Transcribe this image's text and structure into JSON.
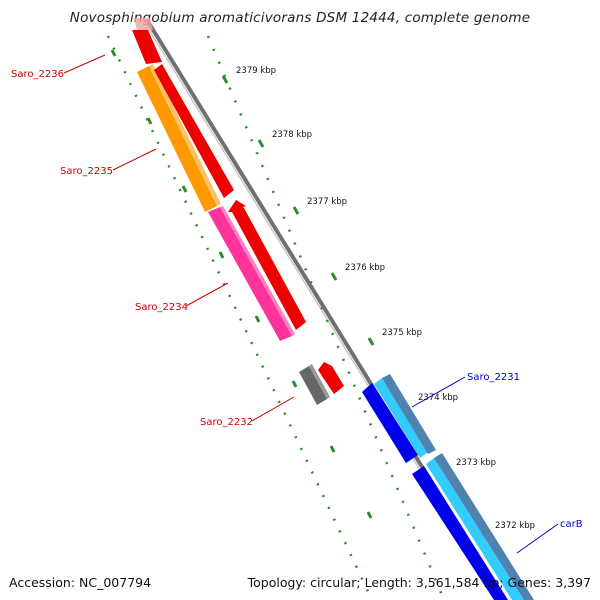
{
  "title": "Novosphingobium aromaticivorans DSM 12444, complete genome",
  "accession_text": "Accession: NC_007794",
  "summary_text": "Topology: circular; Length: 3,561,584 bp; Genes: 3,397",
  "ticks": [
    {
      "label": "2379 kbp"
    },
    {
      "label": "2378 kbp"
    },
    {
      "label": "2377 kbp"
    },
    {
      "label": "2376 kbp"
    },
    {
      "label": "2375 kbp"
    },
    {
      "label": "2374 kbp"
    },
    {
      "label": "2373 kbp"
    },
    {
      "label": "2372 kbp"
    }
  ],
  "gene_labels": [
    {
      "name": "Saro_2236",
      "color": "#cc0000"
    },
    {
      "name": "Saro_2235",
      "color": "#cc0000"
    },
    {
      "name": "Saro_2234",
      "color": "#cc0000"
    },
    {
      "name": "Saro_2232",
      "color": "#cc0000"
    },
    {
      "name": "Saro_2231",
      "color": "#0000cc"
    },
    {
      "name": "carB",
      "color": "#0000cc"
    }
  ],
  "colors": {
    "backbone": "#8a8a8a",
    "tick_green": "#2d8a2d",
    "forward_red": "#ee0000",
    "orange": "#ff9900",
    "pink": "#ff3399",
    "dark_gray": "#666666",
    "blue": "#0000ee",
    "cyan": "#33ccff",
    "steel": "#4f82b0"
  }
}
